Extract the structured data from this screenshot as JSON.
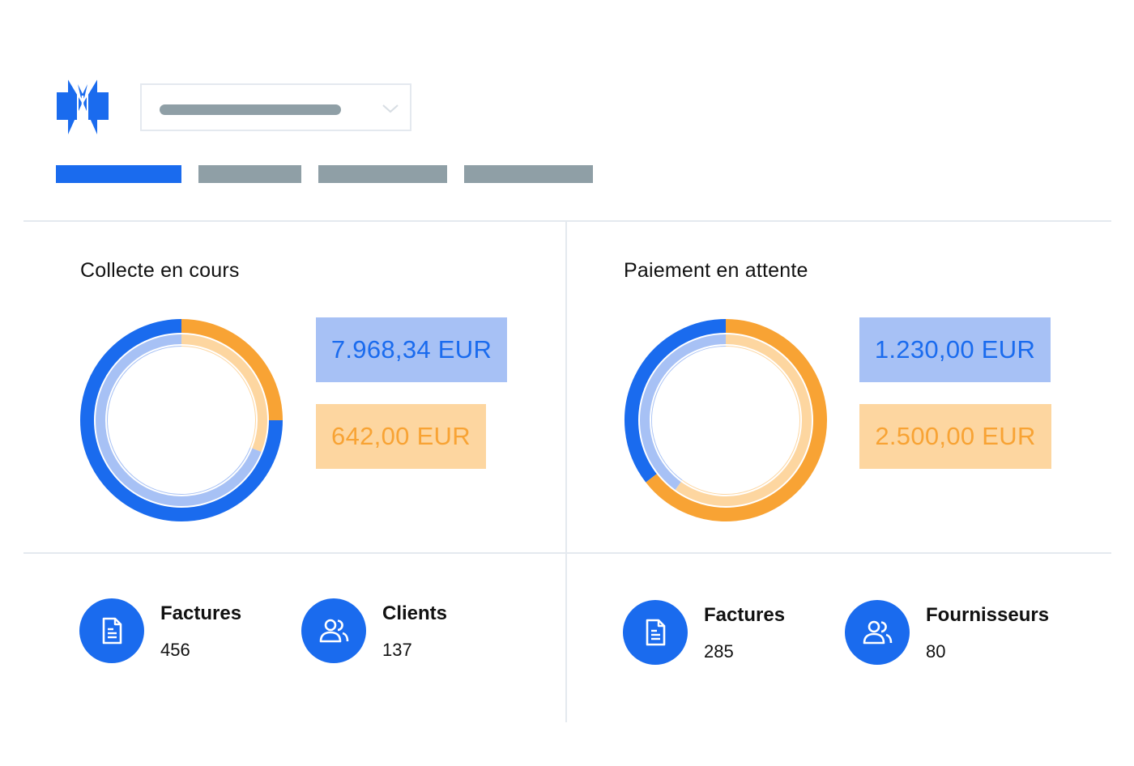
{
  "colors": {
    "primary_blue": "#1a6bee",
    "light_blue": "#a7c1f5",
    "orange": "#f8a334",
    "light_orange": "#fdd6a0",
    "placeholder_gray": "#8f9fa6",
    "divider": "#e4e9ef"
  },
  "header": {
    "logo_icon": "brand-logo-icon",
    "selector": {
      "value": "",
      "chevron_icon": "chevron-down-icon"
    },
    "tabs": [
      {
        "label": "",
        "active": true
      },
      {
        "label": "",
        "active": false
      },
      {
        "label": "",
        "active": false
      },
      {
        "label": "",
        "active": false
      }
    ]
  },
  "sections": [
    {
      "title": "Collecte en cours",
      "amounts": [
        {
          "text": "7.968,34 EUR",
          "color": "light_blue"
        },
        {
          "text": "642,00 EUR",
          "color": "light_orange"
        }
      ],
      "chart_data": {
        "type": "donut",
        "outer_ring": [
          {
            "color": "#f8a334",
            "fraction": 0.25
          },
          {
            "color": "#1a6bee",
            "fraction": 0.75
          }
        ],
        "inner_ring": [
          {
            "color": "#fdd6a0",
            "fraction": 0.31
          },
          {
            "color": "#a7c1f5",
            "fraction": 0.69
          }
        ]
      },
      "stats": [
        {
          "label": "Factures",
          "value": "456",
          "icon": "document-icon"
        },
        {
          "label": "Clients",
          "value": "137",
          "icon": "users-icon"
        }
      ]
    },
    {
      "title": "Paiement en attente",
      "amounts": [
        {
          "text": "1.230,00 EUR",
          "color": "light_blue"
        },
        {
          "text": "2.500,00 EUR",
          "color": "light_orange"
        }
      ],
      "chart_data": {
        "type": "donut",
        "outer_ring": [
          {
            "color": "#f8a334",
            "fraction": 0.645
          },
          {
            "color": "#1a6bee",
            "fraction": 0.355
          }
        ],
        "inner_ring": [
          {
            "color": "#fdd6a0",
            "fraction": 0.6
          },
          {
            "color": "#a7c1f5",
            "fraction": 0.4
          }
        ]
      },
      "stats": [
        {
          "label": "Factures",
          "value": "285",
          "icon": "document-icon"
        },
        {
          "label": "Fournisseurs",
          "value": "80",
          "icon": "users-icon"
        }
      ]
    }
  ]
}
